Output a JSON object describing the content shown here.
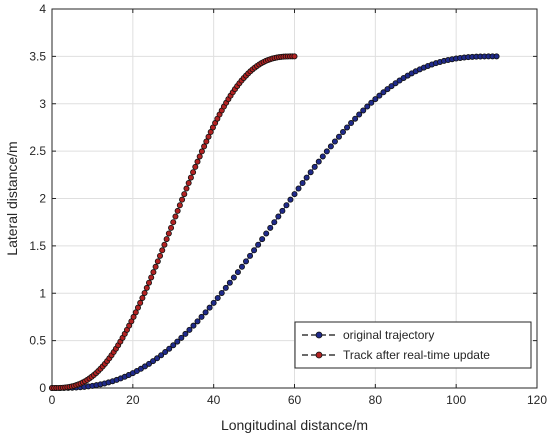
{
  "chart_data": {
    "type": "scatter",
    "xlabel": "Longitudinal distance/m",
    "ylabel": "Lateral distance/m",
    "xlim": [
      0,
      120
    ],
    "ylim": [
      0,
      4
    ],
    "xticks": [
      "0",
      "20",
      "40",
      "60",
      "80",
      "100",
      "120"
    ],
    "yticks": [
      "0",
      "0.5",
      "1",
      "1.5",
      "2",
      "2.5",
      "3",
      "3.5",
      "4"
    ],
    "grid": true,
    "legend_position": "bottom-right",
    "series": [
      {
        "name": "original trajectory",
        "color": "#1f2a8a",
        "line_style": "dashed",
        "marker": "circle",
        "x_start": 0,
        "x_end": 110,
        "y_start": 0,
        "y_end": 3.5,
        "point_count": 111,
        "profile": "quintic lane change"
      },
      {
        "name": "Track after real-time update",
        "color": "#b22222",
        "line_style": "dashed",
        "marker": "circle",
        "x_start": 0,
        "x_end": 60,
        "y_start": 0,
        "y_end": 3.5,
        "point_count": 111,
        "profile": "quintic lane change"
      }
    ]
  }
}
